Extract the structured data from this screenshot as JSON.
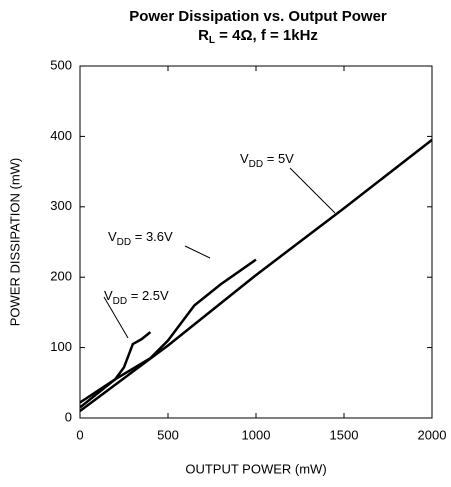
{
  "chart_data": {
    "type": "line",
    "title": "Power Dissipation vs. Output Power",
    "subtitle": [
      "R",
      "L",
      " = 4Ω, f = 1kHz"
    ],
    "x_label": "OUTPUT POWER (mW)",
    "y_label": "POWER DISSIPATION (mW)",
    "xlim": [
      0,
      2000
    ],
    "xticks": [
      0,
      500,
      1000,
      1500,
      2000
    ],
    "ylim": [
      0,
      500
    ],
    "yticks": [
      0,
      100,
      200,
      300,
      400,
      500
    ],
    "grid": false,
    "series": [
      {
        "name": [
          "V",
          "DD",
          " = 5V"
        ],
        "color": "#000000",
        "x": [
          0,
          500,
          1000,
          1500,
          2000
        ],
        "values": [
          10,
          103,
          203,
          298,
          395
        ]
      },
      {
        "name": [
          "V",
          "DD",
          " = 3.6V"
        ],
        "color": "#000000",
        "x": [
          0,
          200,
          400,
          500,
          650,
          800,
          1000
        ],
        "values": [
          22,
          55,
          85,
          110,
          160,
          190,
          225
        ]
      },
      {
        "name": [
          "V",
          "DD",
          " = 2.5V"
        ],
        "color": "#000000",
        "x": [
          0,
          200,
          250,
          300,
          350,
          400
        ],
        "values": [
          15,
          55,
          72,
          105,
          112,
          122
        ]
      }
    ]
  }
}
